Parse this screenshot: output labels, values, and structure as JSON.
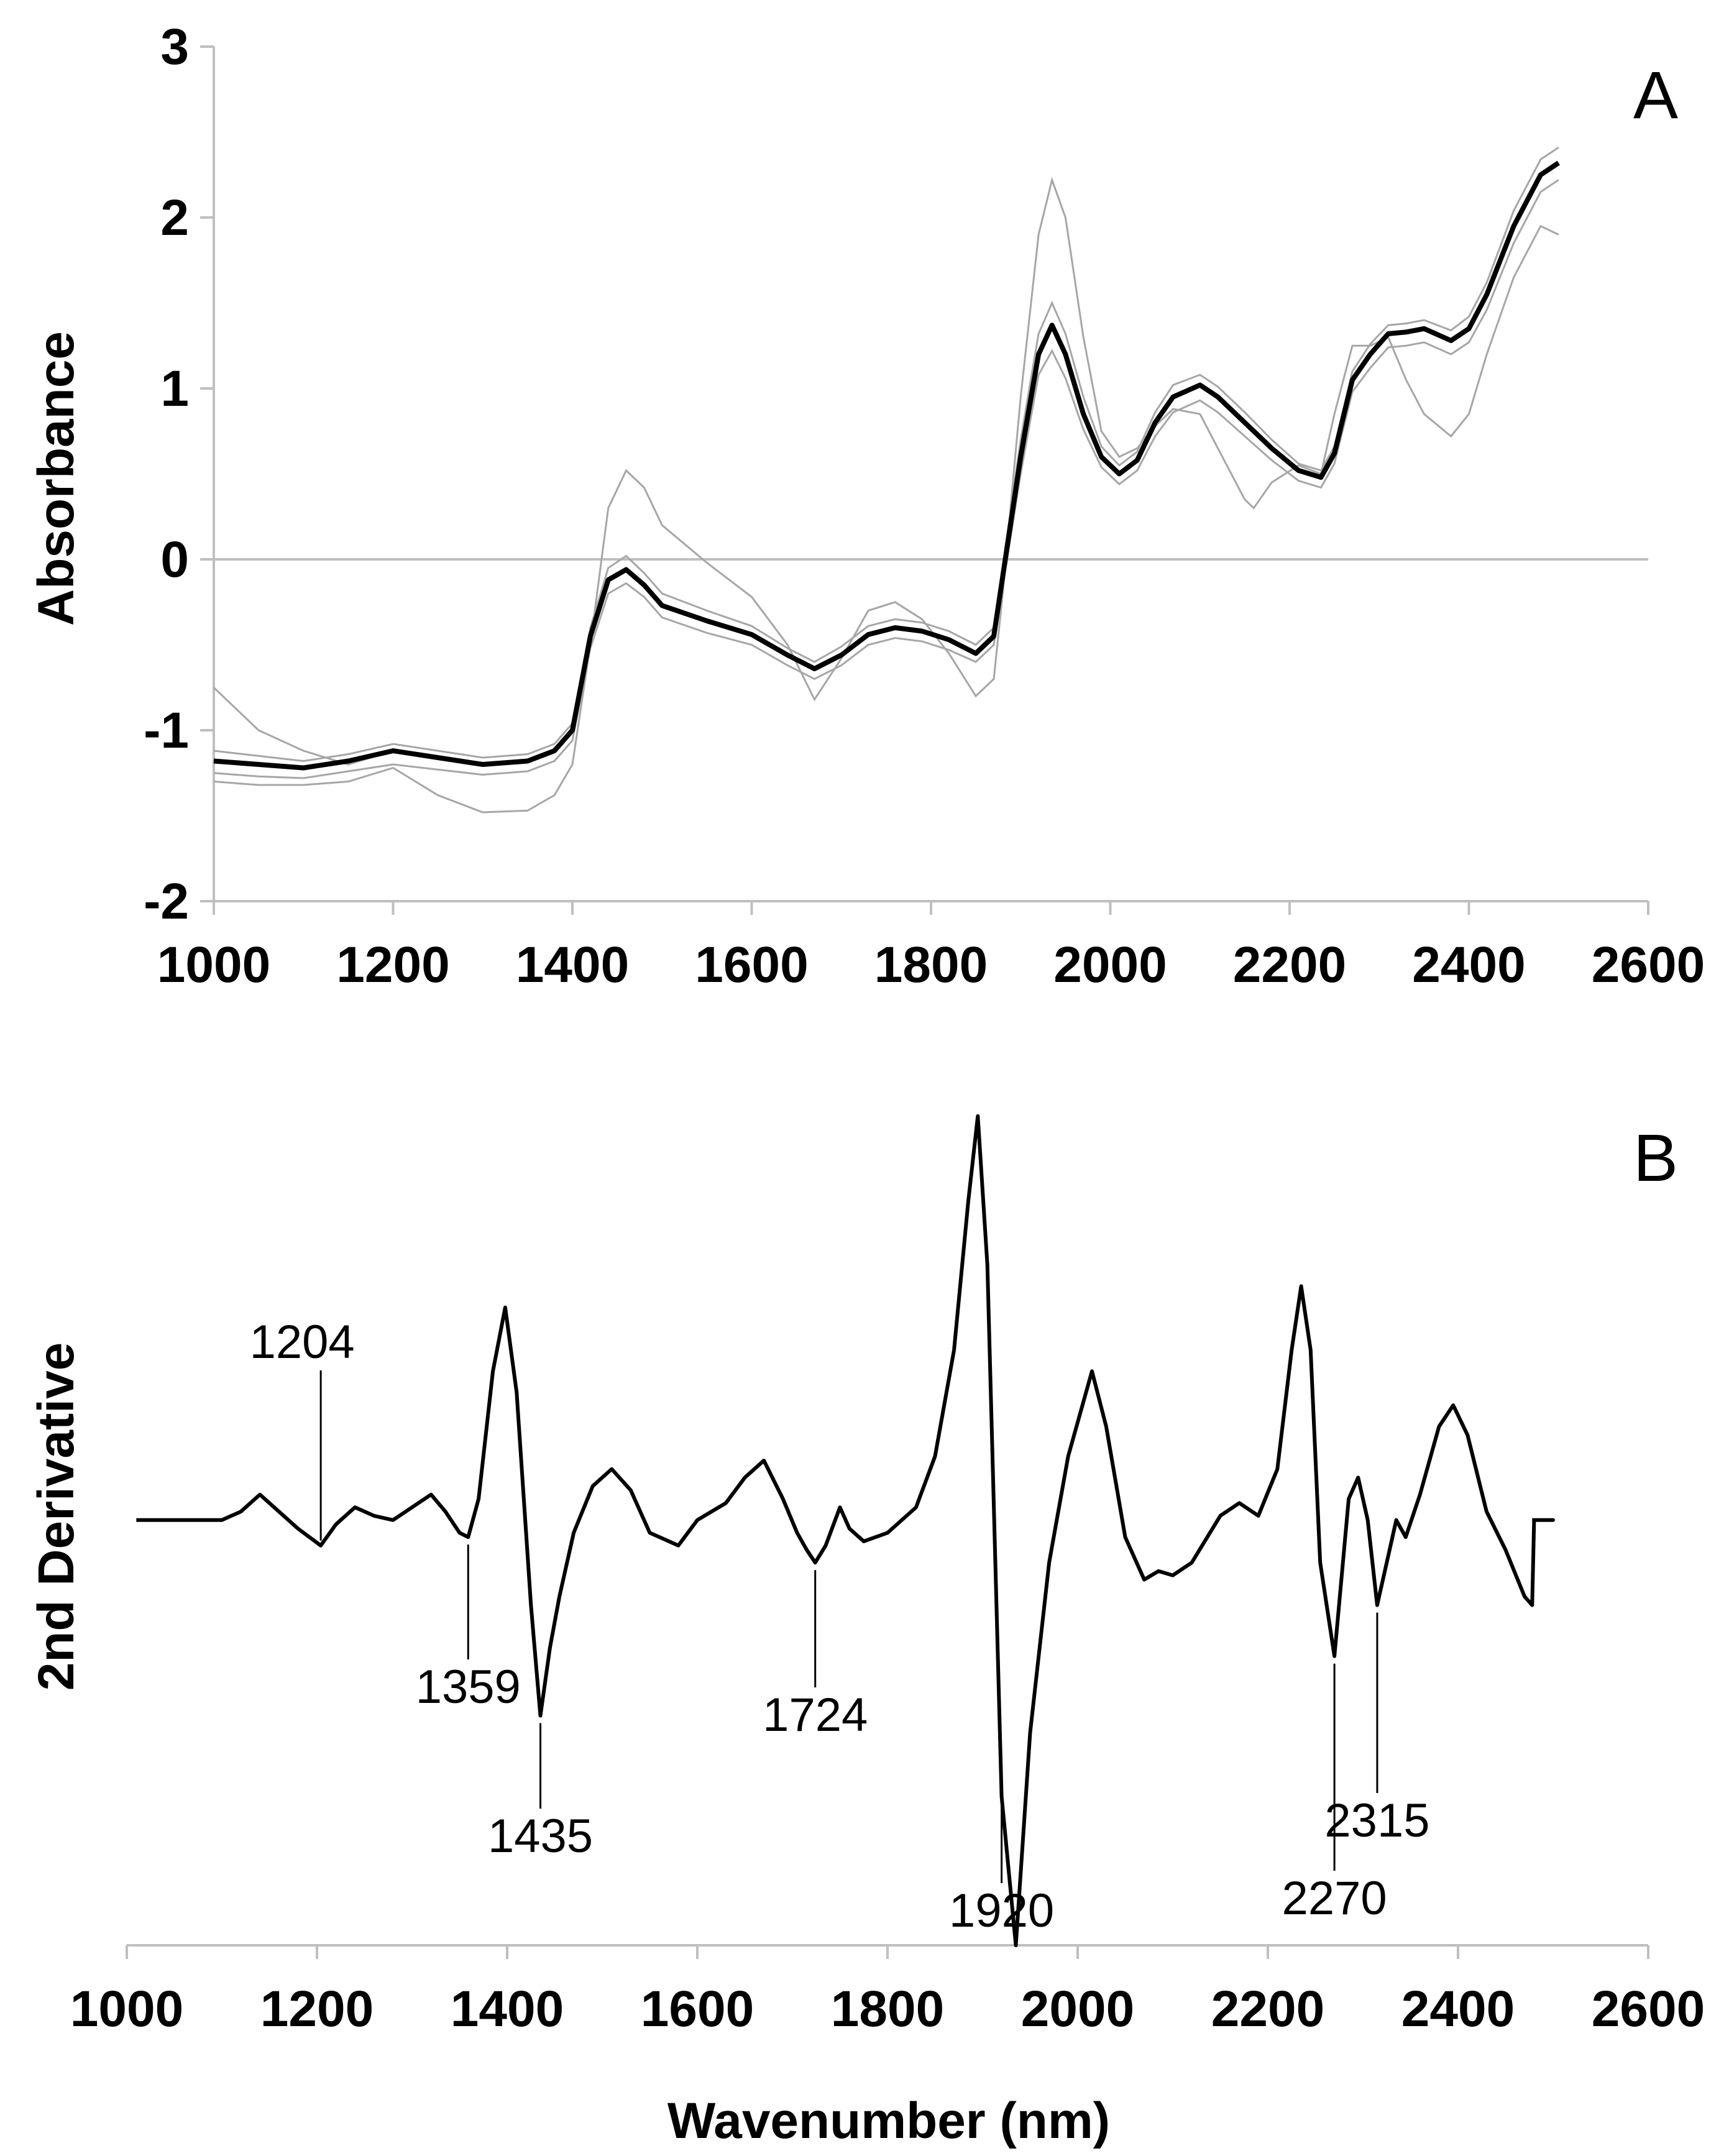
{
  "chart_data": [
    {
      "type": "line",
      "panel_label": "A",
      "ylabel": "Absorbance",
      "xlabel": "",
      "xlim": [
        1000,
        2600
      ],
      "ylim": [
        -2,
        3
      ],
      "x_ticks": [
        "1000",
        "1200",
        "1400",
        "1600",
        "1800",
        "2000",
        "2200",
        "2400",
        "2600"
      ],
      "y_ticks": [
        "-2",
        "-1",
        "0",
        "1",
        "2",
        "3"
      ],
      "grid": false,
      "legend": "none",
      "colors": {
        "mean": "#000000",
        "samples": "#a6a6a6"
      },
      "series": [
        {
          "role": "mean",
          "x": [
            1000,
            1050,
            1100,
            1150,
            1200,
            1250,
            1300,
            1350,
            1380,
            1400,
            1420,
            1440,
            1460,
            1480,
            1500,
            1550,
            1600,
            1640,
            1670,
            1700,
            1730,
            1760,
            1790,
            1820,
            1850,
            1870,
            1880,
            1900,
            1920,
            1935,
            1950,
            1970,
            1990,
            2010,
            2030,
            2050,
            2070,
            2100,
            2120,
            2150,
            2180,
            2210,
            2235,
            2250,
            2270,
            2290,
            2310,
            2330,
            2350,
            2380,
            2400,
            2420,
            2450,
            2480,
            2500
          ],
          "values": [
            -1.18,
            -1.2,
            -1.22,
            -1.18,
            -1.12,
            -1.16,
            -1.2,
            -1.18,
            -1.12,
            -1.0,
            -0.45,
            -0.12,
            -0.06,
            -0.15,
            -0.27,
            -0.36,
            -0.44,
            -0.56,
            -0.64,
            -0.56,
            -0.44,
            -0.4,
            -0.42,
            -0.47,
            -0.55,
            -0.45,
            -0.1,
            0.6,
            1.2,
            1.37,
            1.2,
            0.85,
            0.6,
            0.5,
            0.58,
            0.8,
            0.95,
            1.02,
            0.95,
            0.8,
            0.65,
            0.52,
            0.48,
            0.62,
            1.05,
            1.2,
            1.32,
            1.33,
            1.35,
            1.28,
            1.35,
            1.55,
            1.95,
            2.25,
            2.32
          ]
        },
        {
          "role": "sample",
          "x": [
            1000,
            1050,
            1100,
            1150,
            1200,
            1250,
            1300,
            1350,
            1380,
            1400,
            1420,
            1440,
            1460,
            1480,
            1500,
            1550,
            1600,
            1640,
            1670,
            1700,
            1730,
            1760,
            1790,
            1820,
            1850,
            1870,
            1880,
            1900,
            1920,
            1935,
            1950,
            1970,
            1990,
            2010,
            2030,
            2050,
            2070,
            2100,
            2120,
            2150,
            2180,
            2210,
            2235,
            2250,
            2270,
            2290,
            2310,
            2330,
            2350,
            2380,
            2400,
            2420,
            2450,
            2480,
            2500
          ],
          "values": [
            -1.25,
            -1.27,
            -1.28,
            -1.24,
            -1.2,
            -1.23,
            -1.26,
            -1.24,
            -1.18,
            -1.06,
            -0.52,
            -0.2,
            -0.14,
            -0.22,
            -0.34,
            -0.43,
            -0.5,
            -0.62,
            -0.7,
            -0.62,
            -0.5,
            -0.46,
            -0.48,
            -0.53,
            -0.6,
            -0.5,
            -0.16,
            0.5,
            1.08,
            1.22,
            1.06,
            0.76,
            0.54,
            0.44,
            0.52,
            0.72,
            0.86,
            0.93,
            0.86,
            0.72,
            0.58,
            0.46,
            0.42,
            0.56,
            0.98,
            1.12,
            1.24,
            1.25,
            1.27,
            1.2,
            1.27,
            1.46,
            1.85,
            2.15,
            2.22
          ]
        },
        {
          "role": "sample",
          "x": [
            1000,
            1050,
            1100,
            1150,
            1200,
            1250,
            1300,
            1350,
            1380,
            1400,
            1420,
            1440,
            1460,
            1480,
            1500,
            1550,
            1600,
            1640,
            1670,
            1700,
            1730,
            1760,
            1790,
            1820,
            1850,
            1870,
            1880,
            1900,
            1920,
            1935,
            1950,
            1970,
            1990,
            2010,
            2030,
            2050,
            2070,
            2100,
            2120,
            2150,
            2180,
            2210,
            2235,
            2250,
            2270,
            2290,
            2310,
            2330,
            2350,
            2380,
            2400,
            2420,
            2450,
            2480,
            2500
          ],
          "values": [
            -1.12,
            -1.15,
            -1.18,
            -1.14,
            -1.08,
            -1.12,
            -1.16,
            -1.14,
            -1.08,
            -0.96,
            -0.4,
            -0.05,
            0.02,
            -0.08,
            -0.2,
            -0.3,
            -0.39,
            -0.52,
            -0.6,
            -0.51,
            -0.39,
            -0.35,
            -0.37,
            -0.42,
            -0.5,
            -0.4,
            -0.04,
            0.7,
            1.32,
            1.5,
            1.32,
            0.95,
            0.66,
            0.55,
            0.63,
            0.86,
            1.02,
            1.08,
            1.01,
            0.86,
            0.7,
            0.56,
            0.52,
            0.66,
            1.1,
            1.26,
            1.37,
            1.38,
            1.4,
            1.34,
            1.42,
            1.62,
            2.04,
            2.34,
            2.41
          ]
        },
        {
          "role": "sample",
          "x": [
            1000,
            1050,
            1100,
            1150,
            1200,
            1250,
            1300,
            1350,
            1380,
            1400,
            1420,
            1440,
            1460,
            1480,
            1500,
            1550,
            1600,
            1640,
            1670,
            1700,
            1730,
            1760,
            1790,
            1820,
            1850,
            1870,
            1880,
            1900,
            1920,
            1935,
            1950,
            1970,
            1990,
            2010,
            2030,
            2050,
            2070,
            2100,
            2120,
            2150,
            2180,
            2210,
            2235,
            2250,
            2270,
            2290,
            2310,
            2330,
            2350,
            2380,
            2400,
            2420,
            2450,
            2480,
            2500
          ],
          "values": [
            -0.75,
            -1.0,
            -1.12,
            -1.2,
            -1.12,
            -1.16,
            -1.2,
            -1.18,
            -1.12,
            -1.0,
            -0.45,
            -0.12,
            -0.06,
            -0.15,
            -0.27,
            -0.36,
            -0.44,
            -0.56,
            -0.64,
            -0.56,
            -0.44,
            -0.4,
            -0.42,
            -0.47,
            -0.55,
            -0.45,
            -0.1,
            0.6,
            1.2,
            1.37,
            1.2,
            0.85,
            0.6,
            0.5,
            0.58,
            0.8,
            0.95,
            1.02,
            0.95,
            0.8,
            0.65,
            0.52,
            0.48,
            0.62,
            1.05,
            1.2,
            1.32,
            1.33,
            1.35,
            1.28,
            1.35,
            1.55,
            1.95,
            2.25,
            2.32
          ]
        },
        {
          "role": "sample",
          "x": [
            1000,
            1050,
            1100,
            1150,
            1200,
            1250,
            1300,
            1350,
            1380,
            1400,
            1420,
            1440,
            1460,
            1480,
            1500,
            1550,
            1600,
            1640,
            1670,
            1700,
            1730,
            1760,
            1790,
            1820,
            1850,
            1870,
            1880,
            1900,
            1920,
            1935,
            1950,
            1970,
            1990,
            2010,
            2030,
            2050,
            2070,
            2100,
            2120,
            2150,
            2160,
            2180,
            2210,
            2235,
            2250,
            2270,
            2290,
            2310,
            2330,
            2350,
            2380,
            2400,
            2420,
            2450,
            2480,
            2500
          ],
          "values": [
            -1.3,
            -1.32,
            -1.32,
            -1.3,
            -1.22,
            -1.38,
            -1.48,
            -1.47,
            -1.38,
            -1.2,
            -0.5,
            0.3,
            0.52,
            0.42,
            0.2,
            -0.02,
            -0.22,
            -0.5,
            -0.82,
            -0.58,
            -0.3,
            -0.25,
            -0.35,
            -0.55,
            -0.8,
            -0.7,
            -0.2,
            0.95,
            1.9,
            2.22,
            2.0,
            1.3,
            0.75,
            0.6,
            0.65,
            0.78,
            0.88,
            0.85,
            0.65,
            0.35,
            0.3,
            0.45,
            0.55,
            0.5,
            0.85,
            1.25,
            1.25,
            1.3,
            1.05,
            0.85,
            0.72,
            0.85,
            1.2,
            1.65,
            1.95,
            1.9
          ]
        }
      ]
    },
    {
      "type": "line",
      "panel_label": "B",
      "ylabel": "2nd Derivative",
      "xlabel": "Wavenumber (nm)",
      "xlim": [
        1000,
        2600
      ],
      "x_ticks": [
        "1000",
        "1200",
        "1400",
        "1600",
        "1800",
        "2000",
        "2200",
        "2400",
        "2600"
      ],
      "grid": false,
      "legend": "none",
      "colors": {
        "line": "#000000"
      },
      "ylim": [
        -1.0,
        0.9
      ],
      "series": [
        {
          "x": [
            1010,
            1050,
            1100,
            1120,
            1140,
            1160,
            1180,
            1204,
            1220,
            1240,
            1260,
            1280,
            1300,
            1320,
            1335,
            1350,
            1359,
            1370,
            1385,
            1398,
            1410,
            1425,
            1435,
            1445,
            1455,
            1470,
            1490,
            1510,
            1530,
            1550,
            1580,
            1600,
            1630,
            1650,
            1670,
            1690,
            1705,
            1715,
            1724,
            1735,
            1750,
            1760,
            1775,
            1800,
            1830,
            1850,
            1870,
            1885,
            1895,
            1905,
            1920,
            1935,
            1950,
            1970,
            1990,
            2015,
            2030,
            2050,
            2070,
            2085,
            2100,
            2120,
            2150,
            2170,
            2190,
            2210,
            2225,
            2235,
            2245,
            2255,
            2270,
            2285,
            2295,
            2305,
            2315,
            2325,
            2335,
            2345,
            2360,
            2380,
            2395,
            2410,
            2430,
            2450,
            2470,
            2478,
            2480,
            2500
          ],
          "values": [
            0.0,
            0.0,
            0.0,
            0.02,
            0.06,
            0.02,
            -0.02,
            -0.06,
            -0.01,
            0.03,
            0.01,
            0.0,
            0.03,
            0.06,
            0.02,
            -0.03,
            -0.04,
            0.05,
            0.35,
            0.5,
            0.3,
            -0.2,
            -0.46,
            -0.3,
            -0.18,
            -0.03,
            0.08,
            0.12,
            0.07,
            -0.03,
            -0.06,
            0.0,
            0.04,
            0.1,
            0.14,
            0.05,
            -0.03,
            -0.07,
            -0.1,
            -0.06,
            0.03,
            -0.02,
            -0.05,
            -0.03,
            0.03,
            0.15,
            0.4,
            0.75,
            0.95,
            0.6,
            -0.65,
            -1.0,
            -0.5,
            -0.1,
            0.15,
            0.35,
            0.22,
            -0.04,
            -0.14,
            -0.12,
            -0.13,
            -0.1,
            0.01,
            0.04,
            0.01,
            0.12,
            0.4,
            0.55,
            0.4,
            -0.1,
            -0.32,
            0.05,
            0.1,
            0.0,
            -0.2,
            -0.1,
            0.0,
            -0.04,
            0.06,
            0.22,
            0.27,
            0.2,
            0.02,
            -0.07,
            -0.18,
            -0.2,
            0.0,
            0.0
          ]
        }
      ],
      "annotations": [
        {
          "text": "1204",
          "x": 1204,
          "position": "above"
        },
        {
          "text": "1359",
          "x": 1359,
          "position": "below"
        },
        {
          "text": "1435",
          "x": 1435,
          "position": "below"
        },
        {
          "text": "1724",
          "x": 1724,
          "position": "below"
        },
        {
          "text": "1920",
          "x": 1920,
          "position": "below"
        },
        {
          "text": "2270",
          "x": 2270,
          "position": "below"
        },
        {
          "text": "2315",
          "x": 2315,
          "position": "below"
        }
      ]
    }
  ]
}
